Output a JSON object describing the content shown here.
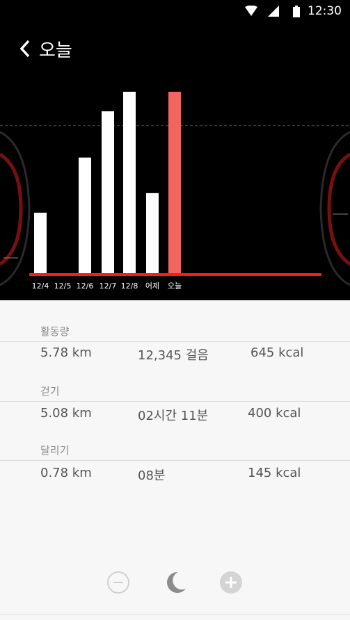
{
  "status_bar": {
    "time": "12:30",
    "icons": [
      "wifi-icon",
      "signal-icon",
      "battery-icon"
    ]
  },
  "header": {
    "title": "오늘",
    "back_icon": "chevron-left-icon"
  },
  "chart_data": {
    "type": "bar",
    "categories": [
      "12/4",
      "12/5",
      "12/6",
      "12/7",
      "12/8",
      "어제",
      "오늘"
    ],
    "values": [
      34,
      0,
      65,
      91,
      102,
      45,
      102
    ],
    "highlight_index": 6,
    "highlight_color": "#f06560",
    "bar_color": "#ffffff",
    "baseline_color": "#ff1a1a",
    "goal_line": 83,
    "ylim": [
      0,
      102
    ]
  },
  "sections": [
    {
      "label": "활동량",
      "distance": "5.78 km",
      "middle": "12,345 걸음",
      "calories": "645 kcal"
    },
    {
      "label": "걷기",
      "distance": "5.08 km",
      "middle": "02시간 11분",
      "calories": "400 kcal"
    },
    {
      "label": "달리기",
      "distance": "0.78 km",
      "middle": "08분",
      "calories": "145 kcal"
    }
  ],
  "controls": {
    "minus_icon": "minus-circle-icon",
    "moon_icon": "moon-icon",
    "plus_icon": "plus-circle-icon"
  }
}
